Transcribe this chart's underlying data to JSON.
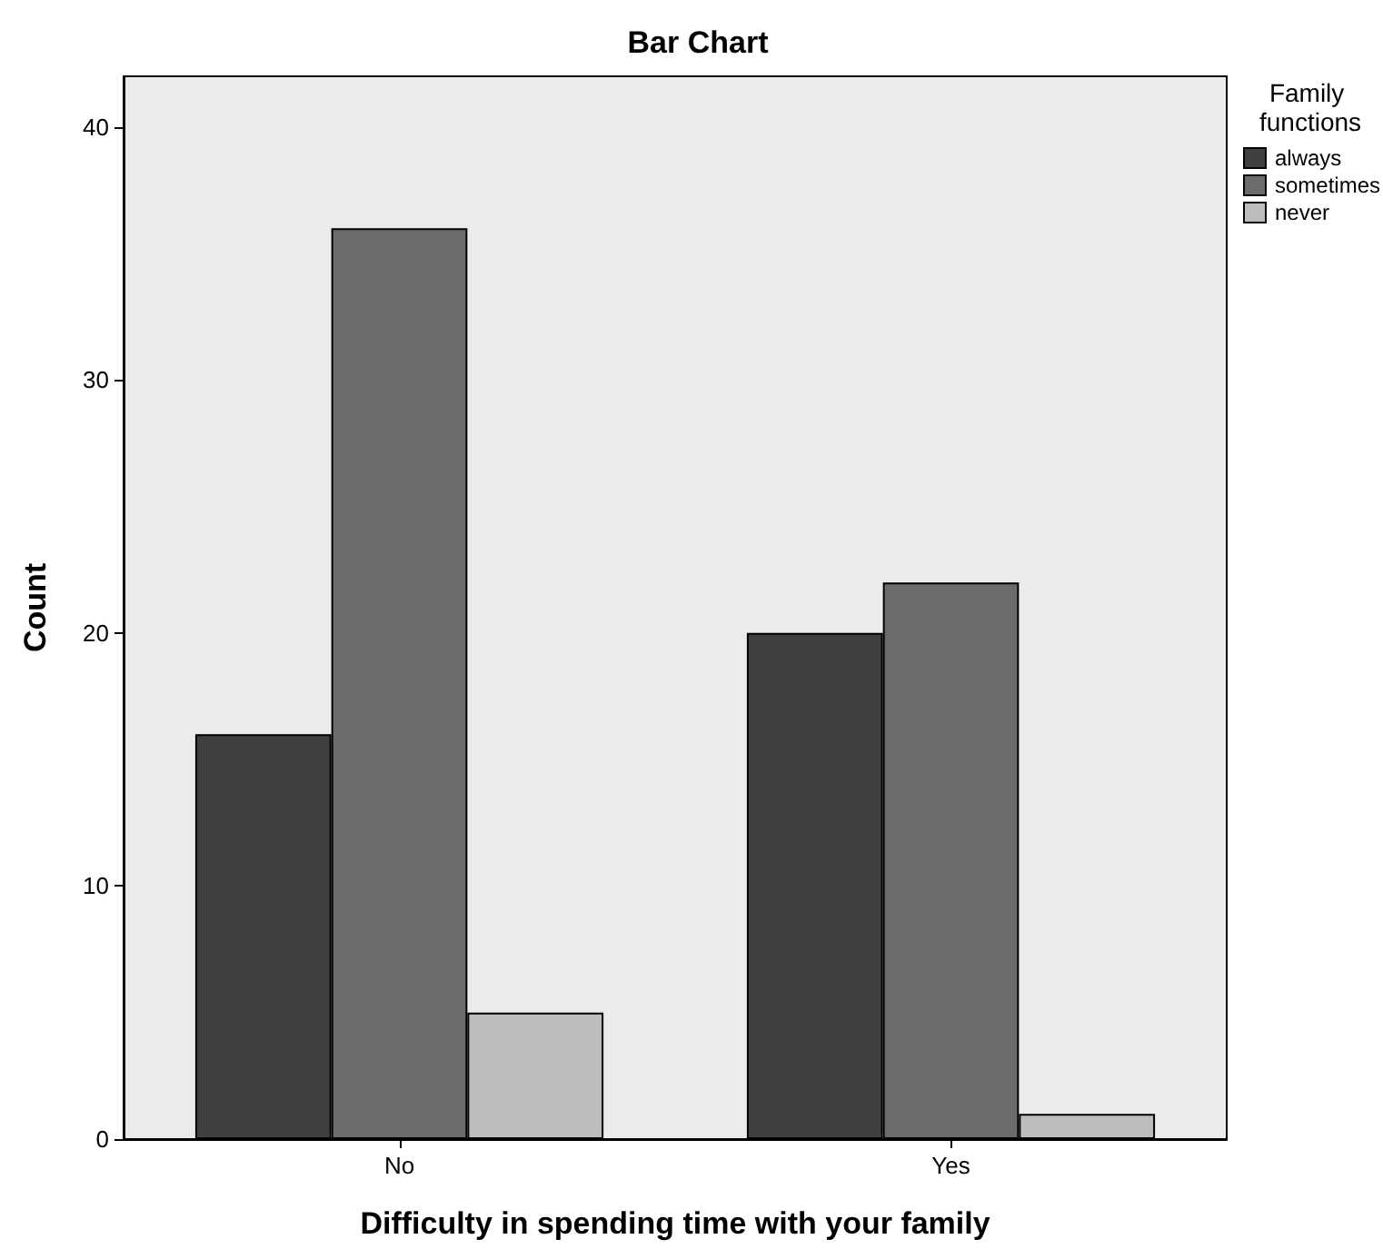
{
  "chart_data": {
    "type": "bar",
    "title": "Bar Chart",
    "xlabel": "Difficulty in spending time with your family",
    "ylabel": "Count",
    "legend_title": "Family functions",
    "categories": [
      "No",
      "Yes"
    ],
    "series": [
      {
        "name": "always",
        "color": "#404040",
        "values": [
          16,
          20
        ]
      },
      {
        "name": "sometimes",
        "color": "#6b6b6b",
        "values": [
          36,
          22
        ]
      },
      {
        "name": "never",
        "color": "#bdbdbd",
        "values": [
          5,
          1
        ]
      }
    ],
    "ylim": [
      0,
      42
    ],
    "yticks": [
      0,
      10,
      20,
      30,
      40
    ],
    "grid": false,
    "legend": "top right"
  }
}
